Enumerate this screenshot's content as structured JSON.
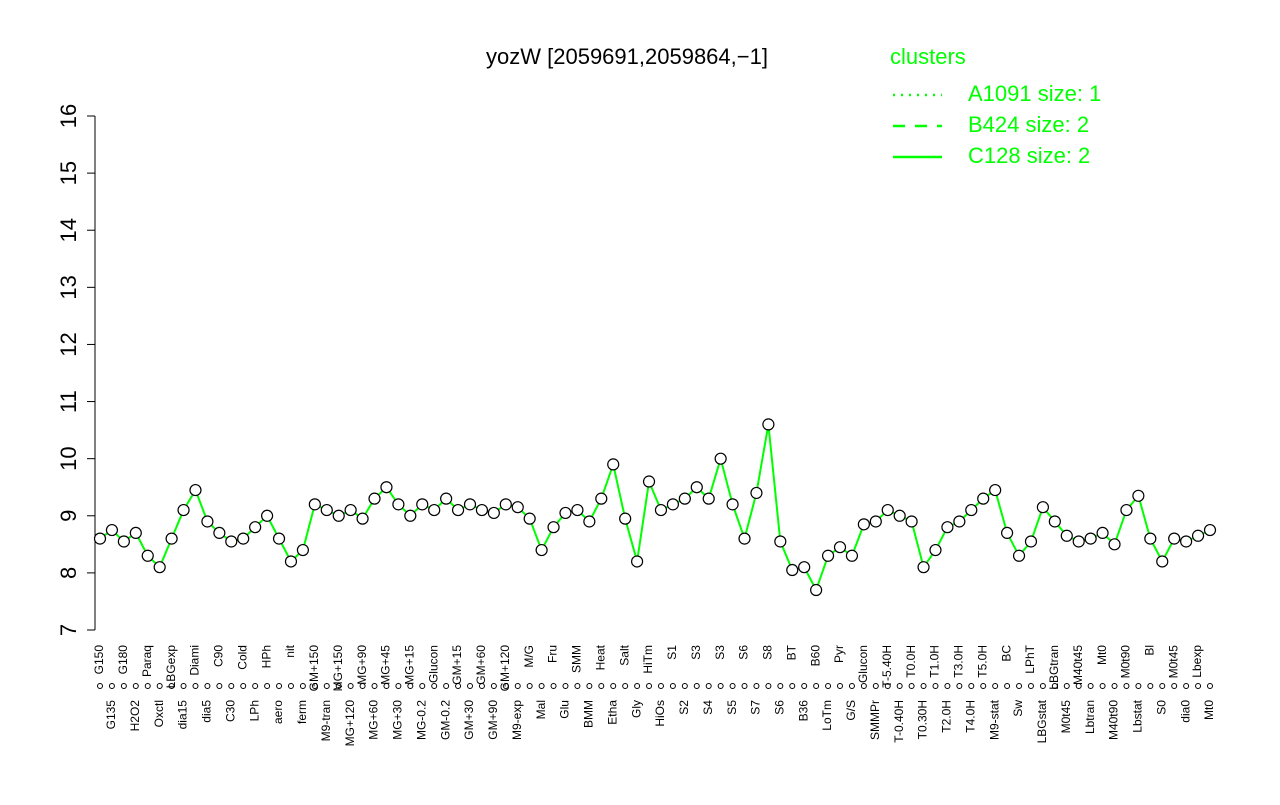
{
  "chart_data": {
    "type": "line",
    "title": "yozW [2059691,2059864,−1]",
    "ylim": [
      7,
      16
    ],
    "yticks": [
      7,
      8,
      9,
      10,
      11,
      12,
      13,
      14,
      15,
      16
    ],
    "line_color": "#00ff00",
    "legend": {
      "title": "clusters",
      "position": "top-right",
      "entries": [
        {
          "label": "A1091 size: 1",
          "dash": "dotted"
        },
        {
          "label": "B424 size: 2",
          "dash": "dashed"
        },
        {
          "label": "C128 size: 2",
          "dash": "solid"
        }
      ]
    },
    "categories": [
      "G150",
      "G135",
      "G180",
      "H2O2",
      "Paraq",
      "Oxctl",
      "LBGexp",
      "dia15",
      "Diami",
      "dia5",
      "C90",
      "C30",
      "Cold",
      "LPh",
      "HPh",
      "aero",
      "nit",
      "ferm",
      "GM+150",
      "M9-tran",
      "MG+150",
      "MG+120",
      "MG+90",
      "MG+60",
      "MG+45",
      "MG+30",
      "MG+15",
      "MG-0.2",
      "Glucon",
      "GM-0.2",
      "GM+15",
      "GM+30",
      "GM+60",
      "GM+90",
      "GM+120",
      "M9-exp",
      "M/G",
      "Mal",
      "Fru",
      "Glu",
      "SMM",
      "BMM",
      "Heat",
      "Etha",
      "Salt",
      "Gly",
      "HiTm",
      "HiOs",
      "S1",
      "S2",
      "S3",
      "S4",
      "S3",
      "S5",
      "S6",
      "S7",
      "S8",
      "S6",
      "BT",
      "B36",
      "B60",
      "LoTm",
      "Pyr",
      "G/S",
      "Glucon",
      "SMMPr",
      "T-5.40H",
      "T-0.40H",
      "T0.0H",
      "T0.30H",
      "T1.0H",
      "T2.0H",
      "T3.0H",
      "T4.0H",
      "T5.0H",
      "M9-stat",
      "BC",
      "Sw",
      "LPhT",
      "LBGstat",
      "LBGtran",
      "M0t45",
      "M40t45",
      "Lbtran",
      "Mt0",
      "M40t90",
      "M0t90",
      "Lbstat",
      "Bl",
      "S0",
      "M0t45",
      "dia0",
      "Lbexp",
      "Mt0"
    ],
    "values": [
      8.6,
      8.75,
      8.55,
      8.7,
      8.3,
      8.1,
      8.6,
      9.1,
      9.45,
      8.9,
      8.7,
      8.55,
      8.6,
      8.8,
      9.0,
      8.6,
      8.2,
      8.4,
      9.2,
      9.1,
      9.0,
      9.1,
      8.95,
      9.3,
      9.5,
      9.2,
      9.0,
      9.2,
      9.1,
      9.3,
      9.1,
      9.2,
      9.1,
      9.05,
      9.2,
      9.15,
      8.95,
      8.4,
      8.8,
      9.05,
      9.1,
      8.9,
      9.3,
      9.9,
      8.95,
      8.2,
      9.6,
      9.1,
      9.2,
      9.3,
      9.5,
      9.3,
      10.0,
      9.2,
      8.6,
      9.4,
      10.6,
      8.55,
      8.05,
      8.1,
      7.7,
      8.3,
      8.45,
      8.3,
      8.85,
      8.9,
      9.1,
      9.0,
      8.9,
      8.1,
      8.4,
      8.8,
      8.9,
      9.1,
      9.3,
      9.45,
      8.7,
      8.3,
      8.55,
      9.15,
      8.9,
      8.65,
      8.55,
      8.6,
      8.7,
      8.5,
      9.1,
      9.35,
      8.6,
      8.2,
      8.6,
      8.55,
      8.65,
      8.75
    ]
  }
}
